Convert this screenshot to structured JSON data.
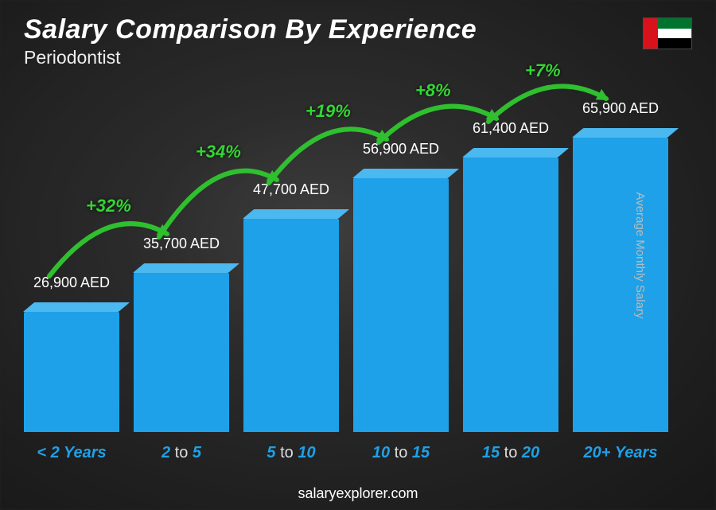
{
  "header": {
    "title": "Salary Comparison By Experience",
    "subtitle": "Periodontist"
  },
  "flag": {
    "vertical": "#d8121a",
    "stripes": [
      "#00732f",
      "#ffffff",
      "#000000"
    ]
  },
  "chart": {
    "type": "bar",
    "y_axis_label": "Average Monthly Salary",
    "currency": "AED",
    "max_value": 65900,
    "bar_fill": "#1ea1e8",
    "bar_top": "#4bb8f0",
    "categories": [
      {
        "label_pre": "<",
        "label_num": "2",
        "label_post": "Years",
        "value": 26900,
        "value_label": "26,900 AED"
      },
      {
        "label_pre": "",
        "label_num": "2",
        "label_mid": "to",
        "label_num2": "5",
        "label_post": "",
        "value": 35700,
        "value_label": "35,700 AED"
      },
      {
        "label_pre": "",
        "label_num": "5",
        "label_mid": "to",
        "label_num2": "10",
        "label_post": "",
        "value": 47700,
        "value_label": "47,700 AED"
      },
      {
        "label_pre": "",
        "label_num": "10",
        "label_mid": "to",
        "label_num2": "15",
        "label_post": "",
        "value": 56900,
        "value_label": "56,900 AED"
      },
      {
        "label_pre": "",
        "label_num": "15",
        "label_mid": "to",
        "label_num2": "20",
        "label_post": "",
        "value": 61400,
        "value_label": "61,400 AED"
      },
      {
        "label_pre": "",
        "label_num": "20+",
        "label_post": "Years",
        "value": 65900,
        "value_label": "65,900 AED"
      }
    ],
    "increases": [
      {
        "from": 0,
        "to": 1,
        "pct": "+32%"
      },
      {
        "from": 1,
        "to": 2,
        "pct": "+34%"
      },
      {
        "from": 2,
        "to": 3,
        "pct": "+19%"
      },
      {
        "from": 3,
        "to": 4,
        "pct": "+8%"
      },
      {
        "from": 4,
        "to": 5,
        "pct": "+7%"
      }
    ],
    "arrow_color": "#2fbf2f",
    "arrow_width": 6,
    "pct_color": "#33d633",
    "pct_fontsize": 22
  },
  "footer": {
    "text": "salaryexplorer.com"
  }
}
